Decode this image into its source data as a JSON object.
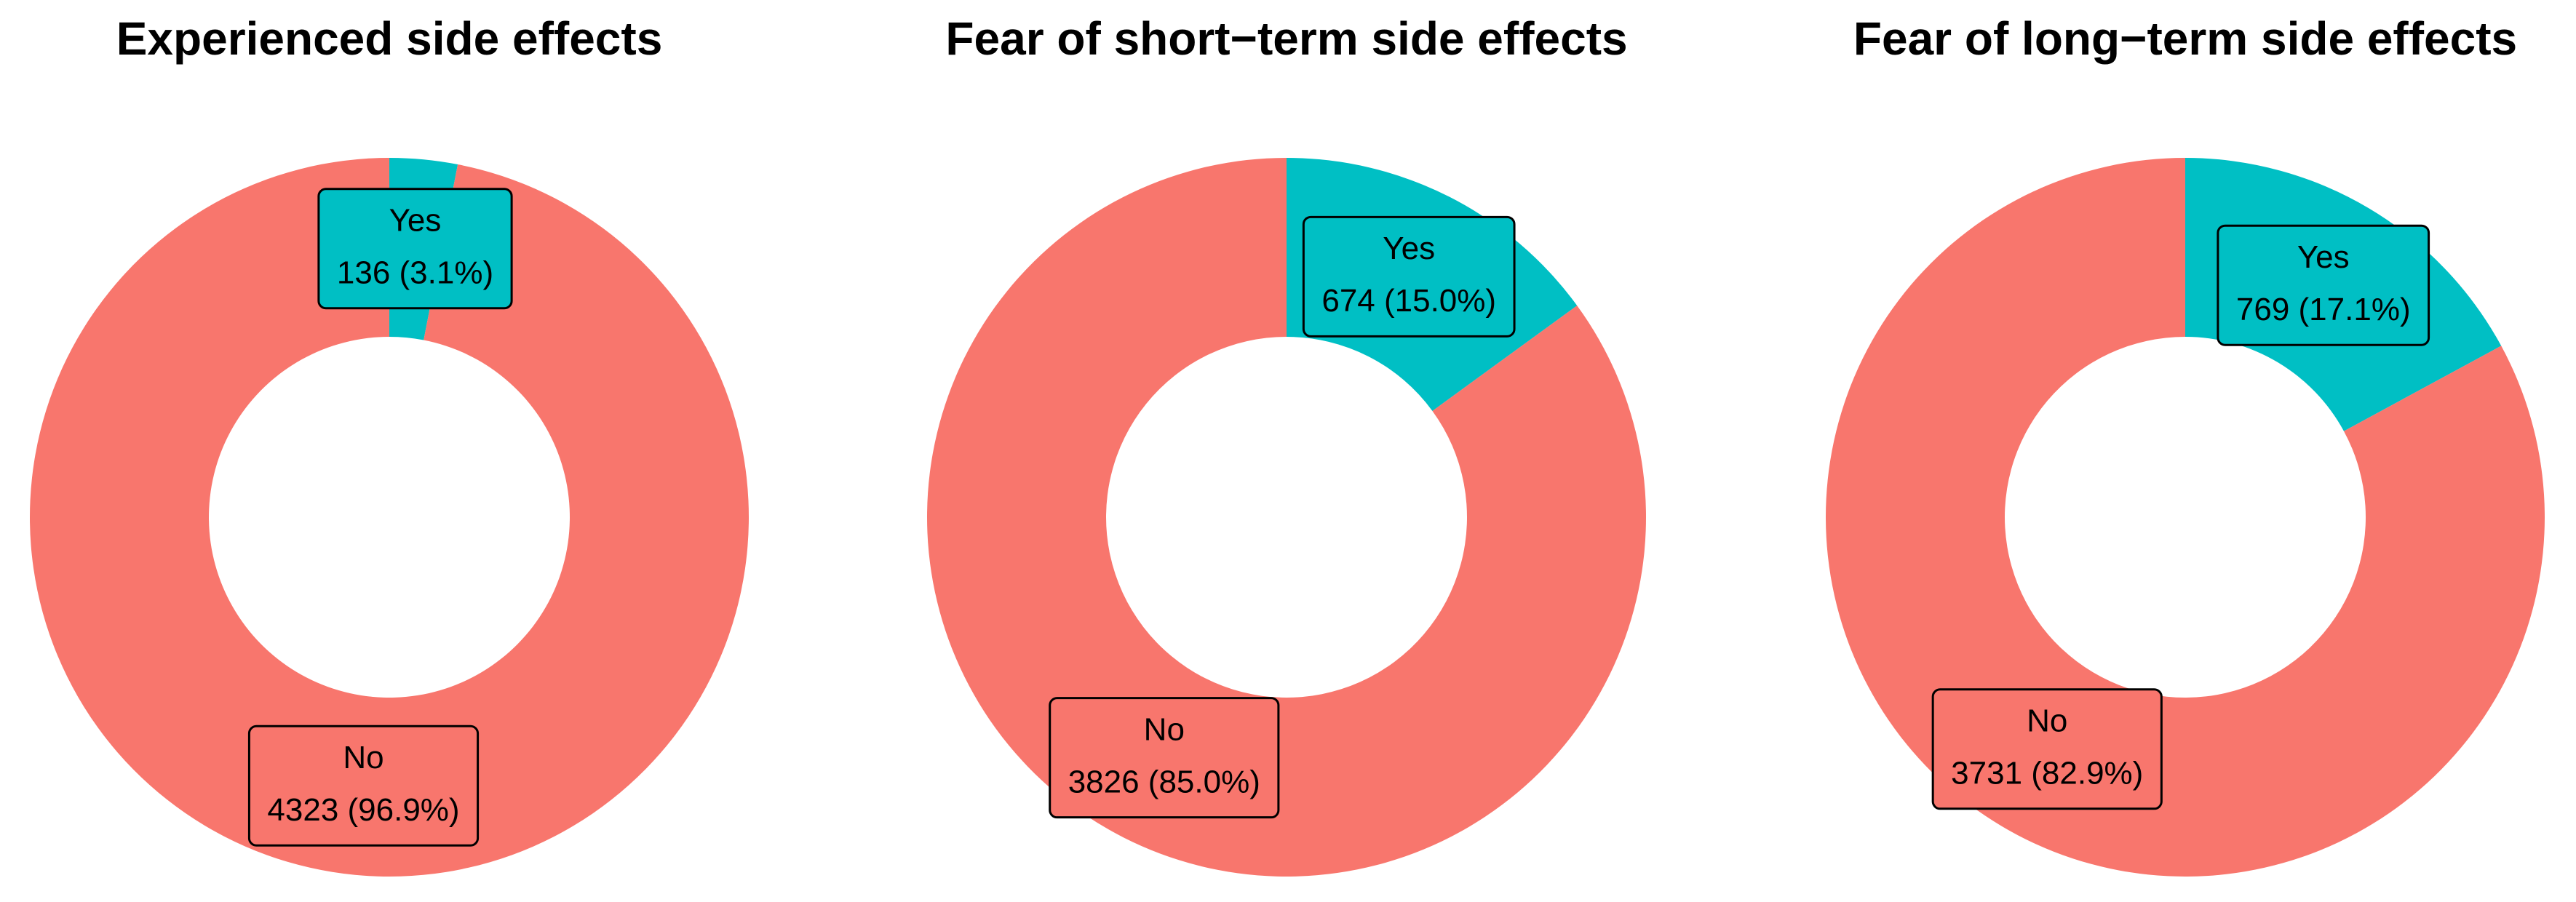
{
  "chart_data": [
    {
      "type": "pie",
      "title": "Experienced side effects",
      "categories": [
        "Yes",
        "No"
      ],
      "values": [
        136,
        4323
      ],
      "value_labels": [
        "136 (3.1%)",
        "4323 (96.9%)"
      ],
      "colors": [
        "#00BFC4",
        "#F8766D"
      ]
    },
    {
      "type": "pie",
      "title": "Fear of short−term side effects",
      "categories": [
        "Yes",
        "No"
      ],
      "values": [
        674,
        3826
      ],
      "value_labels": [
        "674 (15.0%)",
        "3826 (85.0%)"
      ],
      "colors": [
        "#00BFC4",
        "#F8766D"
      ]
    },
    {
      "type": "pie",
      "title": "Fear of long−term side effects",
      "categories": [
        "Yes",
        "No"
      ],
      "values": [
        769,
        3731
      ],
      "value_labels": [
        "769 (17.1%)",
        "3731 (82.9%)"
      ],
      "colors": [
        "#00BFC4",
        "#F8766D"
      ]
    }
  ]
}
